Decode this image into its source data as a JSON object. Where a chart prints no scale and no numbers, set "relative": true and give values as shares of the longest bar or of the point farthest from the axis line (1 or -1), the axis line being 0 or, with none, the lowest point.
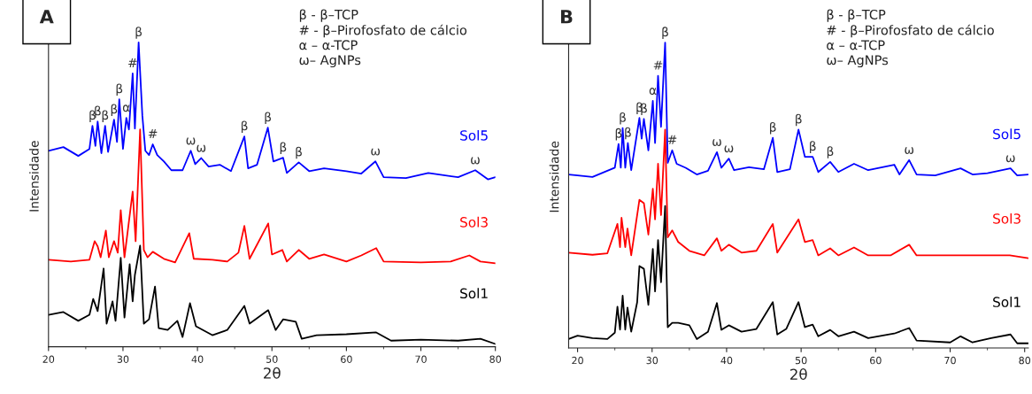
{
  "chart_data": [
    {
      "type": "line",
      "xlabel": "2θ",
      "ylabel": "Intensidade",
      "relative": true,
      "xlim": [
        20,
        80
      ],
      "xticks": [
        20,
        30,
        40,
        50,
        60,
        70,
        80
      ],
      "tick_labels": "x",
      "legend": false,
      "grid": false,
      "series": [
        {
          "name": "Sol5",
          "color": "#0000ff",
          "x": [
            20,
            22,
            24,
            25.5,
            25.9,
            26.3,
            26.6,
            27.1,
            27.6,
            28.0,
            28.8,
            29.2,
            29.5,
            30.0,
            30.45,
            30.8,
            31.3,
            31.6,
            32.1,
            32.6,
            33.0,
            33.5,
            34.0,
            34.6,
            35.5,
            36.5,
            38,
            39.1,
            39.7,
            40.5,
            41.5,
            43,
            44.5,
            46.3,
            46.8,
            48,
            49.45,
            50.2,
            51.5,
            52,
            53.6,
            55,
            57,
            60,
            62,
            63.9,
            65,
            68,
            71,
            75,
            77.3,
            79,
            80
          ],
          "values": [
            0.644,
            0.656,
            0.627,
            0.65,
            0.726,
            0.66,
            0.74,
            0.636,
            0.726,
            0.64,
            0.746,
            0.673,
            0.813,
            0.65,
            0.752,
            0.714,
            0.898,
            0.717,
            1.0,
            0.76,
            0.644,
            0.63,
            0.665,
            0.63,
            0.609,
            0.58,
            0.58,
            0.644,
            0.6,
            0.62,
            0.592,
            0.598,
            0.577,
            0.691,
            0.586,
            0.598,
            0.72,
            0.609,
            0.621,
            0.571,
            0.606,
            0.577,
            0.586,
            0.577,
            0.569,
            0.609,
            0.557,
            0.554,
            0.571,
            0.557,
            0.58,
            0.55,
            0.557
          ]
        },
        {
          "name": "Sol3",
          "color": "#ff0000",
          "x": [
            20,
            23,
            25.5,
            26.2,
            26.6,
            27.0,
            27.7,
            28.1,
            28.8,
            29.3,
            29.7,
            30.2,
            31.3,
            31.7,
            32.3,
            32.8,
            33.3,
            34,
            35.5,
            37,
            38.9,
            39.5,
            42,
            44,
            45.5,
            46.3,
            47,
            49.5,
            50,
            51.4,
            52,
            53.6,
            55,
            57,
            60,
            62,
            64,
            65,
            70,
            74,
            76.5,
            78,
            80
          ],
          "values": [
            0.286,
            0.28,
            0.286,
            0.347,
            0.33,
            0.294,
            0.382,
            0.294,
            0.347,
            0.309,
            0.449,
            0.294,
            0.51,
            0.347,
            0.714,
            0.318,
            0.294,
            0.312,
            0.289,
            0.277,
            0.373,
            0.289,
            0.286,
            0.28,
            0.309,
            0.397,
            0.289,
            0.405,
            0.303,
            0.318,
            0.28,
            0.318,
            0.289,
            0.303,
            0.28,
            0.3,
            0.324,
            0.28,
            0.277,
            0.28,
            0.3,
            0.28,
            0.274
          ]
        },
        {
          "name": "Sol1",
          "color": "#000000",
          "x": [
            20,
            22,
            24,
            25.5,
            26,
            26.6,
            27.4,
            27.8,
            28.6,
            29.0,
            29.7,
            30.2,
            30.9,
            31.3,
            31.6,
            32.3,
            32.8,
            33.5,
            34.3,
            34.8,
            36,
            37.3,
            38,
            39.0,
            39.8,
            42,
            44,
            46.3,
            47,
            49.5,
            50.5,
            51.5,
            53.2,
            54,
            56,
            60,
            64,
            66,
            70,
            75,
            78,
            80
          ],
          "values": [
            0.105,
            0.114,
            0.085,
            0.105,
            0.157,
            0.117,
            0.257,
            0.076,
            0.149,
            0.085,
            0.292,
            0.096,
            0.271,
            0.149,
            0.236,
            0.332,
            0.076,
            0.09,
            0.198,
            0.061,
            0.055,
            0.085,
            0.032,
            0.143,
            0.067,
            0.038,
            0.055,
            0.134,
            0.076,
            0.12,
            0.055,
            0.09,
            0.082,
            0.026,
            0.038,
            0.041,
            0.047,
            0.02,
            0.023,
            0.02,
            0.026,
            0.009
          ]
        }
      ],
      "annotations": [
        "A",
        "β - β–TCP",
        "# - β–Pirofosfato de cálcio",
        "α – α-TCP",
        "ω– AgNPs",
        {
          "text": "β",
          "x": 25.9,
          "y": 0.726
        },
        {
          "text": "β",
          "x": 26.6,
          "y": 0.74
        },
        {
          "text": "β",
          "x": 27.6,
          "y": 0.726
        },
        {
          "text": "β",
          "x": 28.8,
          "y": 0.746
        },
        {
          "text": "β",
          "x": 29.5,
          "y": 0.813
        },
        {
          "text": "α",
          "x": 30.45,
          "y": 0.752
        },
        {
          "text": "#",
          "x": 31.3,
          "y": 0.898
        },
        {
          "text": "β",
          "x": 32.1,
          "y": 1.0
        },
        {
          "text": "#",
          "x": 34.0,
          "y": 0.665
        },
        {
          "text": "ω",
          "x": 39.1,
          "y": 0.644
        },
        {
          "text": "ω",
          "x": 40.5,
          "y": 0.62
        },
        {
          "text": "β",
          "x": 46.3,
          "y": 0.691
        },
        {
          "text": "β",
          "x": 49.45,
          "y": 0.72
        },
        {
          "text": "β",
          "x": 51.5,
          "y": 0.621
        },
        {
          "text": "β",
          "x": 53.6,
          "y": 0.606
        },
        {
          "text": "ω",
          "x": 63.9,
          "y": 0.609
        },
        {
          "text": "ω",
          "x": 77.3,
          "y": 0.58
        }
      ]
    },
    {
      "type": "line",
      "xlabel": "2θ",
      "ylabel": "Intensidade",
      "relative": true,
      "xlim": [
        18.8,
        80.5
      ],
      "xticks": [
        20,
        30,
        40,
        50,
        60,
        70,
        80
      ],
      "tick_labels": "x",
      "legend": false,
      "grid": false,
      "series": [
        {
          "name": "Sol5",
          "color": "#0000ff",
          "x": [
            18.8,
            20,
            22,
            24,
            25,
            25.5,
            25.8,
            26.05,
            26.4,
            26.75,
            27.2,
            28.3,
            28.6,
            28.9,
            29.5,
            30.1,
            30.4,
            30.8,
            31.2,
            31.75,
            32.1,
            32.7,
            33.3,
            34.5,
            36,
            37.5,
            38.7,
            39.3,
            40.3,
            41,
            43,
            45,
            46.2,
            46.8,
            48.5,
            49.65,
            50.5,
            51.55,
            52.3,
            53.9,
            55,
            57.1,
            59,
            62.5,
            63.2,
            64.5,
            65.5,
            68,
            71.4,
            73,
            75,
            78.1,
            79,
            80.5
          ],
          "values": [
            0.568,
            0.565,
            0.56,
            0.58,
            0.59,
            0.668,
            0.59,
            0.72,
            0.59,
            0.671,
            0.582,
            0.753,
            0.685,
            0.75,
            0.647,
            0.809,
            0.671,
            0.891,
            0.724,
            1.0,
            0.606,
            0.647,
            0.603,
            0.59,
            0.568,
            0.58,
            0.641,
            0.59,
            0.62,
            0.582,
            0.592,
            0.585,
            0.688,
            0.576,
            0.585,
            0.715,
            0.626,
            0.626,
            0.576,
            0.609,
            0.576,
            0.603,
            0.582,
            0.6,
            0.568,
            0.615,
            0.568,
            0.565,
            0.588,
            0.568,
            0.572,
            0.588,
            0.565,
            0.568
          ]
        },
        {
          "name": "Sol3",
          "color": "#ff0000",
          "x": [
            18.8,
            22,
            24,
            25.35,
            25.7,
            25.9,
            26.4,
            26.7,
            27.2,
            28.3,
            28.9,
            29.5,
            30.1,
            30.4,
            30.8,
            31.2,
            31.75,
            32.1,
            32.7,
            33.5,
            35,
            37,
            38.7,
            39.3,
            40.3,
            42,
            44,
            46.2,
            46.8,
            49.65,
            50.5,
            51.55,
            52.3,
            53.9,
            55,
            57.1,
            59,
            62,
            64.5,
            65.5,
            70,
            75,
            78,
            80.5
          ],
          "values": [
            0.312,
            0.305,
            0.31,
            0.406,
            0.33,
            0.426,
            0.33,
            0.391,
            0.303,
            0.485,
            0.474,
            0.371,
            0.521,
            0.421,
            0.603,
            0.435,
            0.715,
            0.362,
            0.385,
            0.347,
            0.318,
            0.303,
            0.359,
            0.318,
            0.338,
            0.312,
            0.318,
            0.406,
            0.312,
            0.421,
            0.347,
            0.353,
            0.303,
            0.326,
            0.303,
            0.329,
            0.303,
            0.303,
            0.338,
            0.303,
            0.303,
            0.303,
            0.303,
            0.294
          ]
        },
        {
          "name": "Sol1",
          "color": "#000000",
          "x": [
            18.8,
            20,
            22,
            24,
            25,
            25.35,
            25.7,
            26.05,
            26.4,
            26.7,
            27.2,
            28.0,
            28.3,
            28.9,
            29.5,
            30.1,
            30.4,
            30.8,
            31.2,
            31.75,
            32.1,
            32.7,
            33.5,
            35,
            36,
            37.5,
            38.7,
            39.3,
            40.3,
            42,
            44,
            46.2,
            46.8,
            48,
            49.65,
            50.5,
            51.55,
            52.3,
            53.9,
            55,
            57.1,
            59,
            62.5,
            64.5,
            65.5,
            70,
            71.4,
            73,
            75.5,
            78.1,
            79,
            80.5
          ],
          "values": [
            0.029,
            0.04,
            0.032,
            0.029,
            0.05,
            0.135,
            0.06,
            0.171,
            0.06,
            0.132,
            0.053,
            0.15,
            0.268,
            0.259,
            0.141,
            0.324,
            0.185,
            0.353,
            0.215,
            0.465,
            0.068,
            0.082,
            0.082,
            0.074,
            0.029,
            0.053,
            0.147,
            0.059,
            0.074,
            0.053,
            0.062,
            0.15,
            0.044,
            0.062,
            0.15,
            0.068,
            0.076,
            0.038,
            0.059,
            0.038,
            0.053,
            0.032,
            0.047,
            0.065,
            0.024,
            0.018,
            0.038,
            0.018,
            0.032,
            0.044,
            0.015,
            0.015
          ]
        }
      ],
      "annotations": [
        "B",
        "β - β–TCP",
        "# - β–Pirofosfato de cálcio",
        "α – α-TCP",
        "ω– AgNPs",
        {
          "text": "β",
          "x": 25.5,
          "y": 0.668
        },
        {
          "text": "β",
          "x": 26.05,
          "y": 0.72
        },
        {
          "text": "β",
          "x": 26.75,
          "y": 0.671
        },
        {
          "text": "β",
          "x": 28.3,
          "y": 0.753
        },
        {
          "text": "β",
          "x": 28.9,
          "y": 0.75
        },
        {
          "text": "α",
          "x": 30.1,
          "y": 0.809
        },
        {
          "text": "#",
          "x": 30.8,
          "y": 0.891
        },
        {
          "text": "β",
          "x": 31.75,
          "y": 1.0
        },
        {
          "text": "#",
          "x": 32.7,
          "y": 0.647
        },
        {
          "text": "ω",
          "x": 38.7,
          "y": 0.641
        },
        {
          "text": "ω",
          "x": 40.3,
          "y": 0.62
        },
        {
          "text": "β",
          "x": 46.2,
          "y": 0.688
        },
        {
          "text": "β",
          "x": 49.65,
          "y": 0.715
        },
        {
          "text": "β",
          "x": 51.55,
          "y": 0.626
        },
        {
          "text": "β",
          "x": 53.9,
          "y": 0.609
        },
        {
          "text": "ω",
          "x": 64.5,
          "y": 0.615
        },
        {
          "text": "ω",
          "x": 78.1,
          "y": 0.588
        }
      ]
    }
  ]
}
